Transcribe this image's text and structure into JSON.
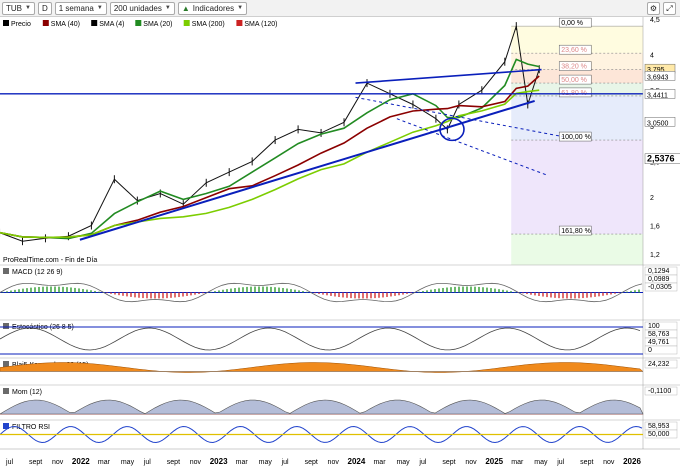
{
  "toolbar": {
    "symbol": "TUB",
    "d_label": "D",
    "period": "1 semana",
    "units": "200 unidades",
    "indicators": "Indicadores"
  },
  "legend": {
    "items": [
      {
        "label": "Precio",
        "color": "#000000"
      },
      {
        "label": "SMA (40)",
        "color": "#8b0000"
      },
      {
        "label": "SMA (4)",
        "color": "#000000"
      },
      {
        "label": "SMA (20)",
        "color": "#228b22"
      },
      {
        "label": "SMA (200)",
        "color": "#7ccd00"
      },
      {
        "label": "SMA (120)",
        "color": "#cc2222"
      }
    ]
  },
  "source_text": "ProRealTime.com - Fin de Día",
  "chart_data": {
    "type": "line",
    "price_axis_ticks": [
      "4,5",
      "4",
      "3,5",
      "3",
      "2,5",
      "2",
      "1,6",
      "1,2"
    ],
    "fib_levels": [
      {
        "label": "0,00 %",
        "value": 4.4
      },
      {
        "label": "23,60 %",
        "value": 4.02
      },
      {
        "label": "38,20 %",
        "value": 3.79
      },
      {
        "label": "50,00 %",
        "value": 3.6
      },
      {
        "label": "61,80 %",
        "value": 3.42
      },
      {
        "label": "100,00 %",
        "value": 2.8
      },
      {
        "label": "161,80 %",
        "value": 1.48
      }
    ],
    "price_badges": [
      {
        "label": "3,795",
        "value": 3.795
      },
      {
        "label": "3,6943",
        "value": 3.6943
      },
      {
        "label": "3,4411",
        "value": 3.4411
      },
      {
        "label": "3,0500",
        "value": 3.05
      },
      {
        "label": "2,5376",
        "value": 2.5376
      }
    ],
    "x_labels": [
      "jul",
      "sept",
      "nov",
      "2022",
      "mar",
      "may",
      "jul",
      "sept",
      "nov",
      "2023",
      "mar",
      "may",
      "jul",
      "sept",
      "nov",
      "2024",
      "mar",
      "may",
      "jul",
      "sept",
      "nov",
      "2025",
      "mar",
      "may",
      "jul",
      "sept",
      "nov",
      "2026"
    ],
    "price_series": [
      {
        "t": "2021-06",
        "v": 1.5
      },
      {
        "t": "2021-08",
        "v": 1.38
      },
      {
        "t": "2021-10",
        "v": 1.42
      },
      {
        "t": "2021-12",
        "v": 1.45
      },
      {
        "t": "2022-02",
        "v": 1.6
      },
      {
        "t": "2022-04",
        "v": 2.25
      },
      {
        "t": "2022-06",
        "v": 1.95
      },
      {
        "t": "2022-08",
        "v": 2.05
      },
      {
        "t": "2022-10",
        "v": 1.9
      },
      {
        "t": "2022-12",
        "v": 2.2
      },
      {
        "t": "2023-02",
        "v": 2.35
      },
      {
        "t": "2023-04",
        "v": 2.5
      },
      {
        "t": "2023-06",
        "v": 2.8
      },
      {
        "t": "2023-08",
        "v": 2.95
      },
      {
        "t": "2023-10",
        "v": 2.9
      },
      {
        "t": "2023-12",
        "v": 3.05
      },
      {
        "t": "2024-02",
        "v": 3.6
      },
      {
        "t": "2024-04",
        "v": 3.45
      },
      {
        "t": "2024-06",
        "v": 3.3
      },
      {
        "t": "2024-08",
        "v": 3.1
      },
      {
        "t": "2024-09",
        "v": 2.95
      },
      {
        "t": "2024-10",
        "v": 3.3
      },
      {
        "t": "2024-12",
        "v": 3.5
      },
      {
        "t": "2025-02",
        "v": 3.9
      },
      {
        "t": "2025-03",
        "v": 4.4
      },
      {
        "t": "2025-04",
        "v": 3.3
      },
      {
        "t": "2025-05",
        "v": 3.795
      }
    ],
    "panels": [
      {
        "title": "MACD (12 26 9)",
        "values": [
          "0,1294",
          "0,0989",
          "-0,0305"
        ]
      },
      {
        "title": "Estocástico (26 8 5)",
        "values": [
          "100",
          "58,763",
          "49,761",
          "0"
        ]
      },
      {
        "title": "Blai5 Koncorde v.09 (15)",
        "values": [
          "24,232"
        ]
      },
      {
        "title": "Mom (12)",
        "values": [
          "-0,1100"
        ]
      },
      {
        "title": "FILTRO RSI",
        "values": [
          "58,953",
          "50,000"
        ]
      }
    ]
  }
}
